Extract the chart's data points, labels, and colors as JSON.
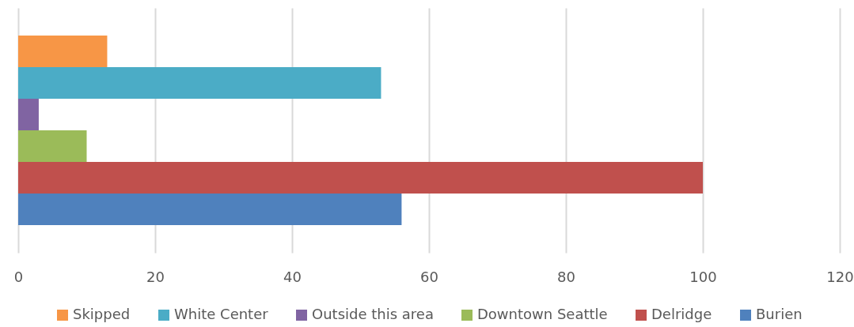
{
  "chart_data": {
    "type": "bar",
    "orientation": "horizontal",
    "categories": [
      null
    ],
    "series": [
      {
        "name": "Skipped",
        "color": "#f79646",
        "values": [
          13
        ]
      },
      {
        "name": "White Center",
        "color": "#4bacc6",
        "values": [
          53
        ]
      },
      {
        "name": "Outside this area",
        "color": "#8064a2",
        "values": [
          3
        ]
      },
      {
        "name": "Downtown Seattle",
        "color": "#9bbb59",
        "values": [
          10
        ]
      },
      {
        "name": "Delridge",
        "color": "#c0504d",
        "values": [
          100
        ]
      },
      {
        "name": "Burien",
        "color": "#4f81bd",
        "values": [
          56
        ]
      }
    ],
    "xlim": [
      0,
      120
    ],
    "xticks": [
      0,
      20,
      40,
      60,
      80,
      100,
      120
    ],
    "grid": "x",
    "legend": "bottom"
  }
}
